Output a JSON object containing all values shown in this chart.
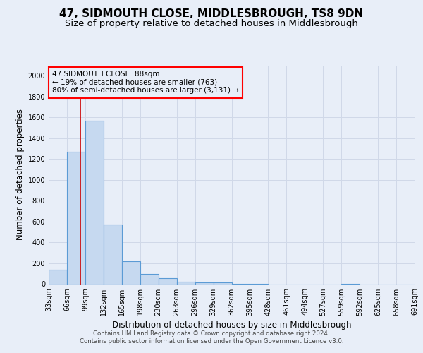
{
  "title": "47, SIDMOUTH CLOSE, MIDDLESBROUGH, TS8 9DN",
  "subtitle": "Size of property relative to detached houses in Middlesbrough",
  "xlabel": "Distribution of detached houses by size in Middlesbrough",
  "ylabel": "Number of detached properties",
  "footer_line1": "Contains HM Land Registry data © Crown copyright and database right 2024.",
  "footer_line2": "Contains public sector information licensed under the Open Government Licence v3.0.",
  "annotation_line1": "47 SIDMOUTH CLOSE: 88sqm",
  "annotation_line2": "← 19% of detached houses are smaller (763)",
  "annotation_line3": "80% of semi-detached houses are larger (3,131) →",
  "bin_labels": [
    "33sqm",
    "66sqm",
    "99sqm",
    "132sqm",
    "165sqm",
    "198sqm",
    "230sqm",
    "263sqm",
    "296sqm",
    "329sqm",
    "362sqm",
    "395sqm",
    "428sqm",
    "461sqm",
    "494sqm",
    "527sqm",
    "559sqm",
    "592sqm",
    "625sqm",
    "658sqm",
    "691sqm"
  ],
  "bar_values": [
    140,
    1270,
    1570,
    575,
    220,
    100,
    55,
    25,
    15,
    15,
    5,
    5,
    0,
    0,
    0,
    0,
    5,
    0,
    0,
    0
  ],
  "bar_color": "#c6d9f0",
  "bar_edge_color": "#5b9bd5",
  "red_line_x": 1.73,
  "ylim": [
    0,
    2100
  ],
  "yticks": [
    0,
    200,
    400,
    600,
    800,
    1000,
    1200,
    1400,
    1600,
    1800,
    2000
  ],
  "background_color": "#e8eef8",
  "grid_color": "#d0d8e8",
  "title_fontsize": 11,
  "subtitle_fontsize": 9.5,
  "axis_fontsize": 8.5,
  "tick_fontsize": 7,
  "footer_fontsize": 6.2,
  "ann_fontsize": 7.5
}
